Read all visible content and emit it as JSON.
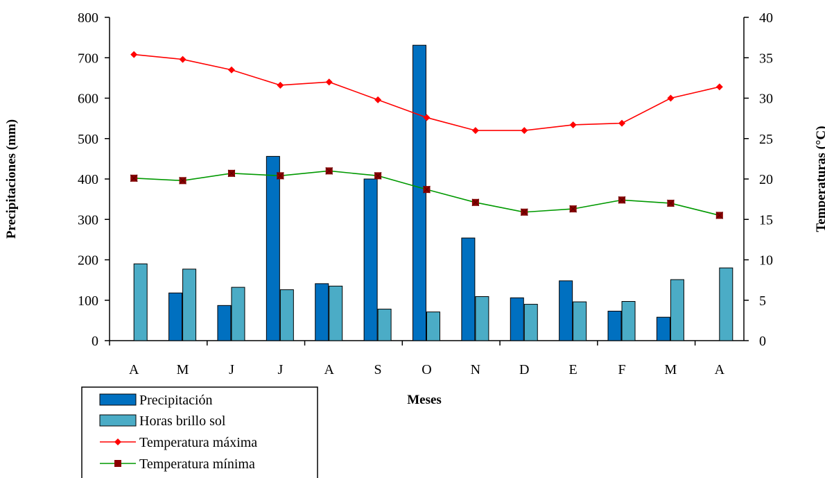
{
  "chart_data": {
    "type": "bar",
    "categories": [
      "A",
      "M",
      "J",
      "J",
      "A",
      "S",
      "O",
      "N",
      "D",
      "E",
      "F",
      "M",
      "A"
    ],
    "xlabel": "Meses",
    "ylabel_left": "Precipitaciones (mm)",
    "ylabel_right": "Temperaturas (°C)",
    "ylim_left": [
      0,
      800
    ],
    "ylim_right": [
      0,
      40
    ],
    "yticks_left": [
      "0",
      "100",
      "200",
      "300",
      "400",
      "500",
      "600",
      "700",
      "800"
    ],
    "yticks_right": [
      "0",
      "5",
      "10",
      "15",
      "20",
      "25",
      "30",
      "35",
      "40"
    ],
    "grid": false,
    "legend_position": "bottom-left",
    "series": [
      {
        "name": "Precipitación",
        "kind": "bar",
        "axis": "left",
        "color": "#0070C0",
        "values": [
          0,
          118,
          87,
          456,
          141,
          400,
          731,
          254,
          106,
          148,
          73,
          58,
          0
        ]
      },
      {
        "name": "Horas brillo sol",
        "kind": "bar",
        "axis": "left",
        "color": "#4BACC6",
        "values": [
          190,
          177,
          132,
          126,
          135,
          78,
          71,
          109,
          90,
          96,
          97,
          151,
          180
        ]
      },
      {
        "name": "Temperatura máxima",
        "kind": "line",
        "axis": "right",
        "color": "#FF0000",
        "marker": "diamond",
        "values": [
          35.4,
          34.8,
          33.5,
          31.6,
          32.0,
          29.8,
          27.6,
          26.0,
          26.0,
          26.7,
          26.9,
          30.0,
          31.4
        ]
      },
      {
        "name": "Temperatura mínima",
        "kind": "line",
        "axis": "right",
        "color": "#009900",
        "marker": "square",
        "marker_color": "#8B0000",
        "values": [
          20.1,
          19.8,
          20.7,
          20.4,
          21.0,
          20.4,
          18.7,
          17.1,
          15.9,
          16.3,
          17.4,
          17.0,
          15.5
        ]
      }
    ]
  }
}
